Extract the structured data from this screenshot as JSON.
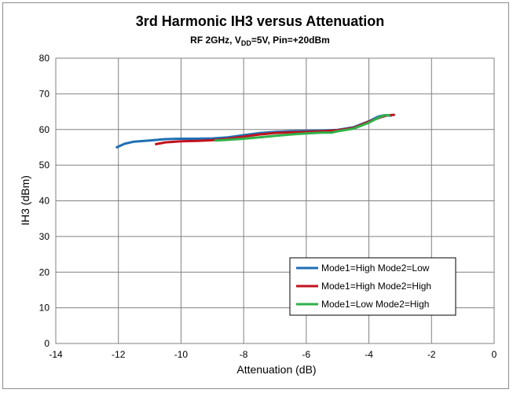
{
  "chart_data": {
    "type": "line",
    "title": "3rd Harmonic IH3 versus Attenuation",
    "subtitle": {
      "prefix": "RF 2GHz, V",
      "subscript": "DD",
      "suffix": "=5V, Pin=+20dBm"
    },
    "xlabel": "Attenuation (dB)",
    "ylabel": "IH3 (dBm)",
    "xlim": [
      -14,
      0
    ],
    "ylim": [
      0,
      80
    ],
    "xticks": [
      -14,
      -12,
      -10,
      -8,
      -6,
      -4,
      -2,
      0
    ],
    "yticks": [
      0,
      10,
      20,
      30,
      40,
      50,
      60,
      70,
      80
    ],
    "grid": true,
    "legend_position": "lower-right",
    "series": [
      {
        "name": "Mode1=High Mode2=Low",
        "color": "#1f6fb4",
        "x": [
          -12.05,
          -11.8,
          -11.5,
          -11.0,
          -10.5,
          -10.0,
          -9.5,
          -9.0,
          -8.5,
          -8.0,
          -7.5,
          -7.0,
          -6.5,
          -6.0,
          -5.5,
          -5.0,
          -4.5,
          -4.0,
          -3.7,
          -3.5,
          -3.3
        ],
        "y": [
          55.0,
          56.0,
          56.6,
          56.9,
          57.3,
          57.4,
          57.4,
          57.5,
          57.8,
          58.4,
          59.0,
          59.3,
          59.5,
          59.6,
          59.7,
          59.9,
          60.6,
          62.3,
          63.6,
          64.0,
          63.9
        ]
      },
      {
        "name": "Mode1=High Mode2=High",
        "color": "#c0121d",
        "x": [
          -10.8,
          -10.5,
          -10.0,
          -9.5,
          -9.0,
          -8.5,
          -8.0,
          -7.5,
          -7.0,
          -6.5,
          -6.0,
          -5.5,
          -5.0,
          -4.5,
          -4.0,
          -3.6,
          -3.4,
          -3.2
        ],
        "y": [
          55.9,
          56.4,
          56.7,
          56.8,
          57.0,
          57.4,
          58.0,
          58.6,
          59.0,
          59.2,
          59.3,
          59.5,
          59.8,
          60.4,
          62.2,
          63.5,
          64.0,
          64.1
        ]
      },
      {
        "name": "Mode1=Low Mode2=High",
        "color": "#2fb24a",
        "x": [
          -8.9,
          -8.5,
          -8.0,
          -7.5,
          -7.0,
          -6.5,
          -6.0,
          -5.5,
          -5.2,
          -5.0,
          -4.5,
          -4.0,
          -3.7,
          -3.5,
          -3.35
        ],
        "y": [
          56.9,
          57.1,
          57.4,
          57.8,
          58.2,
          58.6,
          58.9,
          59.1,
          59.1,
          59.5,
          60.2,
          61.9,
          63.3,
          64.0,
          64.0
        ]
      }
    ]
  }
}
